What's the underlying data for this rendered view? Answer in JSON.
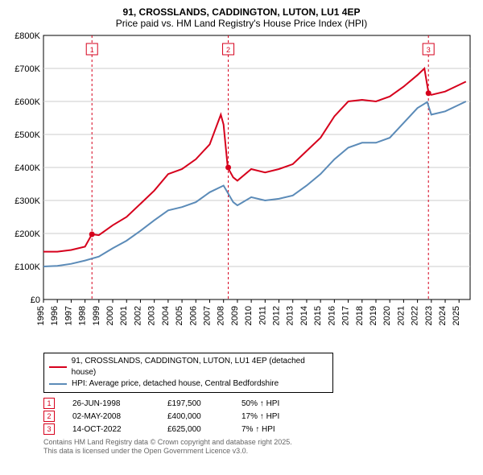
{
  "title_line1": "91, CROSSLANDS, CADDINGTON, LUTON, LU1 4EP",
  "title_line2": "Price paid vs. HM Land Registry's House Price Index (HPI)",
  "legend": {
    "series1_label": "91, CROSSLANDS, CADDINGTON, LUTON, LU1 4EP (detached house)",
    "series2_label": "HPI: Average price, detached house, Central Bedfordshire"
  },
  "chart": {
    "type": "line",
    "xlim": [
      1995,
      2025.8
    ],
    "ylim": [
      0,
      800000
    ],
    "ytick_step": 100000,
    "yticks_labels": [
      "£0",
      "£100K",
      "£200K",
      "£300K",
      "£400K",
      "£500K",
      "£600K",
      "£700K",
      "£800K"
    ],
    "xticks": [
      1995,
      1996,
      1997,
      1998,
      1999,
      2000,
      2001,
      2002,
      2003,
      2004,
      2005,
      2006,
      2007,
      2008,
      2009,
      2010,
      2011,
      2012,
      2013,
      2014,
      2015,
      2016,
      2017,
      2018,
      2019,
      2020,
      2021,
      2022,
      2023,
      2024,
      2025
    ],
    "background_color": "#ffffff",
    "border_color": "#000000",
    "grid_color": "#cccccc",
    "series1_color": "#d6001c",
    "series1_width": 2,
    "series2_color": "#5b8bb8",
    "series2_width": 2,
    "marker_border_color": "#d6001c",
    "marker_fill": "#ffffff",
    "marker_line_color": "#d6001c",
    "marker_line_dash": "3,3",
    "series1": [
      [
        1995,
        145000
      ],
      [
        1996,
        145000
      ],
      [
        1997,
        150000
      ],
      [
        1998,
        160000
      ],
      [
        1998.5,
        197500
      ],
      [
        1999,
        195000
      ],
      [
        2000,
        225000
      ],
      [
        2001,
        250000
      ],
      [
        2002,
        290000
      ],
      [
        2003,
        330000
      ],
      [
        2004,
        380000
      ],
      [
        2005,
        395000
      ],
      [
        2006,
        425000
      ],
      [
        2007,
        470000
      ],
      [
        2007.8,
        560000
      ],
      [
        2008,
        530000
      ],
      [
        2008.3,
        400000
      ],
      [
        2008.7,
        370000
      ],
      [
        2009,
        360000
      ],
      [
        2010,
        395000
      ],
      [
        2011,
        385000
      ],
      [
        2012,
        395000
      ],
      [
        2013,
        410000
      ],
      [
        2014,
        450000
      ],
      [
        2015,
        490000
      ],
      [
        2016,
        555000
      ],
      [
        2017,
        600000
      ],
      [
        2018,
        605000
      ],
      [
        2019,
        600000
      ],
      [
        2020,
        615000
      ],
      [
        2021,
        645000
      ],
      [
        2022,
        680000
      ],
      [
        2022.5,
        700000
      ],
      [
        2022.8,
        625000
      ],
      [
        2023,
        620000
      ],
      [
        2024,
        630000
      ],
      [
        2025,
        650000
      ],
      [
        2025.5,
        660000
      ]
    ],
    "series2": [
      [
        1995,
        100000
      ],
      [
        1996,
        102000
      ],
      [
        1997,
        108000
      ],
      [
        1998,
        118000
      ],
      [
        1999,
        130000
      ],
      [
        2000,
        155000
      ],
      [
        2001,
        178000
      ],
      [
        2002,
        208000
      ],
      [
        2003,
        240000
      ],
      [
        2004,
        270000
      ],
      [
        2005,
        280000
      ],
      [
        2006,
        295000
      ],
      [
        2007,
        325000
      ],
      [
        2008,
        345000
      ],
      [
        2008.7,
        295000
      ],
      [
        2009,
        285000
      ],
      [
        2010,
        310000
      ],
      [
        2011,
        300000
      ],
      [
        2012,
        305000
      ],
      [
        2013,
        315000
      ],
      [
        2014,
        345000
      ],
      [
        2015,
        380000
      ],
      [
        2016,
        425000
      ],
      [
        2017,
        460000
      ],
      [
        2018,
        475000
      ],
      [
        2019,
        475000
      ],
      [
        2020,
        490000
      ],
      [
        2021,
        535000
      ],
      [
        2022,
        580000
      ],
      [
        2022.7,
        598000
      ],
      [
        2023,
        560000
      ],
      [
        2024,
        570000
      ],
      [
        2025,
        590000
      ],
      [
        2025.5,
        600000
      ]
    ],
    "markers": [
      {
        "num": "1",
        "x": 1998.5,
        "y_line": 197500
      },
      {
        "num": "2",
        "x": 2008.34,
        "y_line": 400000
      },
      {
        "num": "3",
        "x": 2022.79,
        "y_line": 625000
      }
    ]
  },
  "sales": [
    {
      "num": "1",
      "date": "26-JUN-1998",
      "price": "£197,500",
      "pct": "50% ↑ HPI"
    },
    {
      "num": "2",
      "date": "02-MAY-2008",
      "price": "£400,000",
      "pct": "17% ↑ HPI"
    },
    {
      "num": "3",
      "date": "14-OCT-2022",
      "price": "£625,000",
      "pct": "7% ↑ HPI"
    }
  ],
  "footnote_line1": "Contains HM Land Registry data © Crown copyright and database right 2025.",
  "footnote_line2": "This data is licensed under the Open Government Licence v3.0."
}
